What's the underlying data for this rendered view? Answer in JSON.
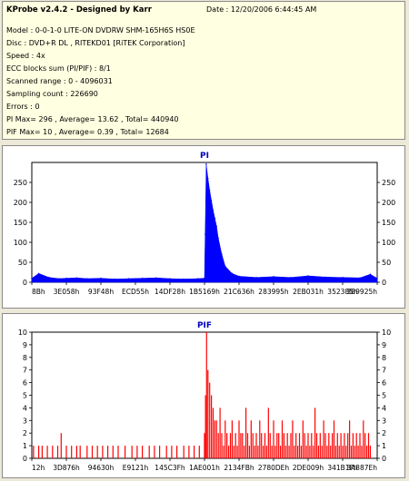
{
  "header": {
    "app_title": "KProbe v2.4.2",
    "separator": " - ",
    "designer": "Designed by Karr",
    "date": "Date : 12/20/2006 6:44:45 AM"
  },
  "info": {
    "model": "Model : 0-0-1-0 LITE-ON DVDRW SHM-165H6S HS0E",
    "disc": "Disc : DVD+R DL , RITEKD01 [RiTEK Corporation]",
    "speed": "Speed : 4x",
    "ecc": "ECC blocks sum (PI/PIF) : 8/1",
    "scanned": "Scanned range : 0 - 4096031",
    "sampling": "Sampling count : 226690",
    "errors": "Errors : 0",
    "pi_stats": "PI Max= 296 , Average= 13.62 , Total= 440940",
    "pif_stats": "PIF Max= 10 , Average= 0.39 , Total= 12684"
  },
  "colors": {
    "pi_series": "#0000ff",
    "pif_series": "#ff0000",
    "background": "#ece9d8",
    "plot_bg": "#ffffff",
    "title_color": "#0000c0"
  },
  "chart_data": [
    {
      "type": "area",
      "title": "PI",
      "x_tick_labels": [
        "8Bh",
        "3E058h",
        "93F48h",
        "ECD55h",
        "14DF28h",
        "1B5169h",
        "21C636h",
        "283995h",
        "2EB031h",
        "352385h",
        "3B9925h"
      ],
      "yticks": [
        0,
        50,
        100,
        150,
        200,
        250
      ],
      "ylim": [
        0,
        300
      ],
      "x_range": [
        0,
        1
      ],
      "grid": false,
      "series": [
        {
          "x": [
            0.0,
            0.02,
            0.05,
            0.08,
            0.1,
            0.13,
            0.16,
            0.2,
            0.24,
            0.28,
            0.32,
            0.36,
            0.4,
            0.44,
            0.48,
            0.5,
            0.502,
            0.505,
            0.51,
            0.515,
            0.52,
            0.525,
            0.53,
            0.535,
            0.54,
            0.55,
            0.56,
            0.58,
            0.6,
            0.65,
            0.7,
            0.75,
            0.8,
            0.85,
            0.9,
            0.95,
            0.98,
            1.0
          ],
          "y": [
            10,
            22,
            12,
            9,
            10,
            11,
            9,
            10,
            8,
            9,
            10,
            11,
            9,
            8,
            9,
            10,
            120,
            296,
            260,
            230,
            205,
            180,
            160,
            140,
            110,
            70,
            40,
            22,
            15,
            12,
            14,
            12,
            16,
            13,
            12,
            11,
            20,
            10
          ]
        }
      ]
    },
    {
      "type": "bar",
      "title": "PIF",
      "x_tick_labels": [
        "12h",
        "3D876h",
        "94630h",
        "E9121h",
        "145C3Fh",
        "1AE001h",
        "2134FBh",
        "2780DEh",
        "2DE009h",
        "341B1Fh",
        "3A887Eh"
      ],
      "yticks": [
        0,
        1,
        2,
        3,
        4,
        5,
        6,
        7,
        8,
        9,
        10
      ],
      "ylim": [
        0,
        10
      ],
      "x_range": [
        0,
        1
      ],
      "grid": false,
      "series": [
        {
          "x": [
            0.005,
            0.02,
            0.03,
            0.045,
            0.06,
            0.075,
            0.085,
            0.1,
            0.115,
            0.13,
            0.14,
            0.16,
            0.175,
            0.19,
            0.205,
            0.22,
            0.235,
            0.25,
            0.27,
            0.29,
            0.305,
            0.32,
            0.34,
            0.355,
            0.37,
            0.39,
            0.405,
            0.42,
            0.44,
            0.455,
            0.47,
            0.485,
            0.5,
            0.503,
            0.506,
            0.51,
            0.515,
            0.52,
            0.525,
            0.53,
            0.535,
            0.54,
            0.545,
            0.55,
            0.555,
            0.56,
            0.565,
            0.57,
            0.575,
            0.58,
            0.585,
            0.59,
            0.595,
            0.6,
            0.605,
            0.61,
            0.615,
            0.62,
            0.625,
            0.63,
            0.635,
            0.64,
            0.645,
            0.65,
            0.655,
            0.66,
            0.665,
            0.67,
            0.675,
            0.68,
            0.685,
            0.69,
            0.695,
            0.7,
            0.705,
            0.71,
            0.715,
            0.72,
            0.725,
            0.73,
            0.735,
            0.74,
            0.745,
            0.75,
            0.755,
            0.76,
            0.765,
            0.77,
            0.775,
            0.78,
            0.785,
            0.79,
            0.795,
            0.8,
            0.805,
            0.81,
            0.815,
            0.82,
            0.825,
            0.83,
            0.835,
            0.84,
            0.845,
            0.85,
            0.855,
            0.86,
            0.865,
            0.87,
            0.875,
            0.88,
            0.885,
            0.89,
            0.895,
            0.9,
            0.905,
            0.91,
            0.915,
            0.92,
            0.925,
            0.93,
            0.935,
            0.94,
            0.945,
            0.95,
            0.955,
            0.96,
            0.965,
            0.97,
            0.975,
            0.98
          ],
          "y": [
            1,
            1,
            1,
            1,
            1,
            1,
            2,
            1,
            1,
            1,
            1,
            1,
            1,
            1,
            1,
            1,
            1,
            1,
            1,
            1,
            1,
            1,
            1,
            1,
            1,
            1,
            1,
            1,
            1,
            1,
            1,
            1,
            2,
            5,
            10,
            7,
            6,
            5,
            4,
            3,
            3,
            2,
            4,
            2,
            1,
            3,
            2,
            1,
            2,
            3,
            1,
            2,
            1,
            3,
            2,
            2,
            1,
            4,
            2,
            1,
            3,
            2,
            1,
            2,
            1,
            3,
            2,
            1,
            2,
            1,
            4,
            2,
            1,
            3,
            1,
            2,
            2,
            1,
            3,
            2,
            1,
            2,
            1,
            2,
            3,
            1,
            2,
            1,
            2,
            1,
            3,
            2,
            1,
            2,
            1,
            2,
            1,
            4,
            2,
            1,
            2,
            1,
            3,
            2,
            1,
            2,
            1,
            2,
            3,
            1,
            2,
            1,
            2,
            1,
            2,
            1,
            2,
            3,
            1,
            2,
            1,
            2,
            1,
            2,
            1,
            3,
            2,
            1,
            2,
            1
          ]
        }
      ]
    }
  ]
}
